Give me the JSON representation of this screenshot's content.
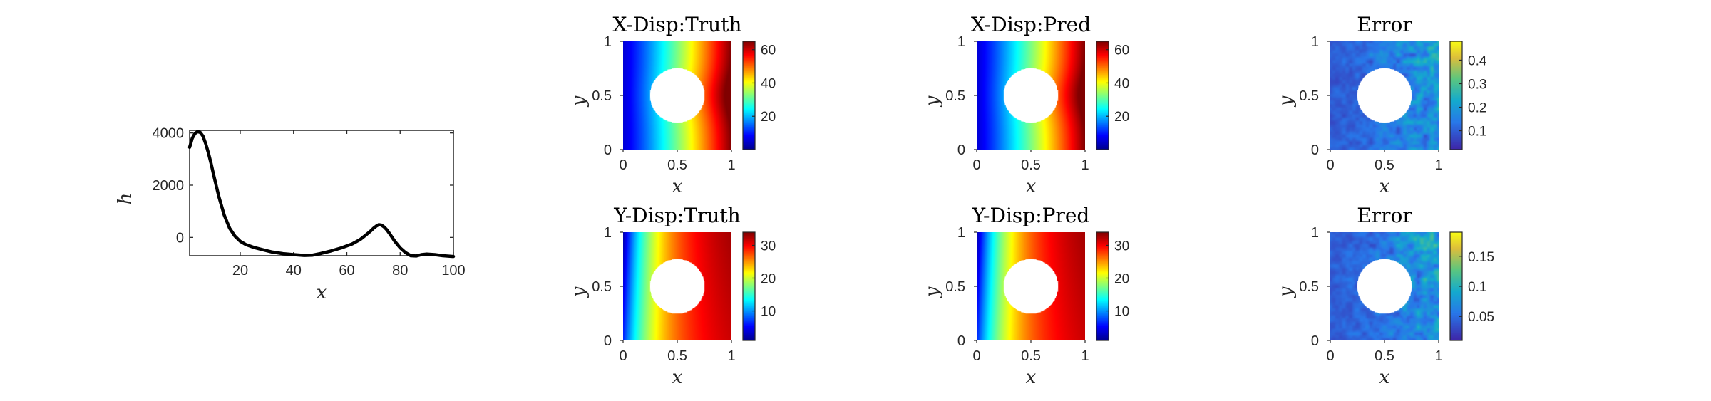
{
  "figure": {
    "background": "#ffffff",
    "axis_color": "#262626"
  },
  "chart_data": [
    {
      "type": "line",
      "title": "",
      "xlabel": "x",
      "ylabel": "h",
      "xlim": [
        1,
        100
      ],
      "ylim": [
        -700,
        4100
      ],
      "xticks": [
        20,
        40,
        60,
        80,
        100
      ],
      "yticks": [
        0,
        2000,
        4000
      ],
      "line_color": "#000000",
      "series": [
        {
          "x": [
            1,
            2,
            3,
            4,
            5,
            6,
            7,
            8,
            9,
            10,
            12,
            14,
            16,
            18,
            20,
            22,
            25,
            28,
            32,
            36,
            40,
            44,
            47,
            50,
            54,
            58,
            62,
            65,
            67,
            69,
            70,
            71,
            72,
            73,
            74,
            75,
            76,
            77,
            78,
            80,
            82,
            84,
            86,
            88,
            90,
            93,
            96,
            100
          ],
          "y": [
            3450,
            3800,
            3980,
            4050,
            4020,
            3880,
            3600,
            3250,
            2850,
            2400,
            1550,
            850,
            350,
            50,
            -150,
            -270,
            -380,
            -460,
            -560,
            -620,
            -660,
            -690,
            -680,
            -620,
            -520,
            -400,
            -250,
            -80,
            80,
            250,
            350,
            430,
            490,
            470,
            400,
            290,
            150,
            0,
            -150,
            -400,
            -580,
            -700,
            -710,
            -660,
            -640,
            -660,
            -700,
            -730
          ]
        }
      ]
    },
    {
      "type": "heatmap",
      "title": "X-Disp:Truth",
      "xlabel": "x",
      "ylabel": "y",
      "xlim": [
        0,
        1
      ],
      "ylim": [
        0,
        1
      ],
      "xticks": [
        0,
        0.5,
        1
      ],
      "yticks": [
        0,
        0.5,
        1
      ],
      "colormap": "jet",
      "clim": [
        0,
        65
      ],
      "colorbar_ticks": [
        20,
        40,
        60
      ],
      "field": "x_displacement",
      "hole": {
        "cx": 0.5,
        "cy": 0.5,
        "r": 0.25
      }
    },
    {
      "type": "heatmap",
      "title": "X-Disp:Pred",
      "xlabel": "x",
      "ylabel": "y",
      "xlim": [
        0,
        1
      ],
      "ylim": [
        0,
        1
      ],
      "xticks": [
        0,
        0.5,
        1
      ],
      "yticks": [
        0,
        0.5,
        1
      ],
      "colormap": "jet",
      "clim": [
        0,
        65
      ],
      "colorbar_ticks": [
        20,
        40,
        60
      ],
      "field": "x_displacement",
      "hole": {
        "cx": 0.5,
        "cy": 0.5,
        "r": 0.25
      }
    },
    {
      "type": "heatmap",
      "title": "Error",
      "xlabel": "x",
      "ylabel": "y",
      "xlim": [
        0,
        1
      ],
      "ylim": [
        0,
        1
      ],
      "xticks": [
        0,
        0.5,
        1
      ],
      "yticks": [
        0,
        0.5,
        1
      ],
      "colormap": "parula",
      "clim": [
        0.02,
        0.48
      ],
      "colorbar_ticks": [
        0.1,
        0.2,
        0.3,
        0.4
      ],
      "field": "error",
      "hole": {
        "cx": 0.5,
        "cy": 0.5,
        "r": 0.25
      }
    },
    {
      "type": "heatmap",
      "title": "Y-Disp:Truth",
      "xlabel": "x",
      "ylabel": "y",
      "xlim": [
        0,
        1
      ],
      "ylim": [
        0,
        1
      ],
      "xticks": [
        0,
        0.5,
        1
      ],
      "yticks": [
        0,
        0.5,
        1
      ],
      "colormap": "jet",
      "clim": [
        1,
        34
      ],
      "colorbar_ticks": [
        10,
        20,
        30
      ],
      "field": "y_displacement",
      "hole": {
        "cx": 0.5,
        "cy": 0.5,
        "r": 0.25
      }
    },
    {
      "type": "heatmap",
      "title": "Y-Disp:Pred",
      "xlabel": "x",
      "ylabel": "y",
      "xlim": [
        0,
        1
      ],
      "ylim": [
        0,
        1
      ],
      "xticks": [
        0,
        0.5,
        1
      ],
      "yticks": [
        0,
        0.5,
        1
      ],
      "colormap": "jet",
      "clim": [
        1,
        34
      ],
      "colorbar_ticks": [
        10,
        20,
        30
      ],
      "field": "y_displacement",
      "hole": {
        "cx": 0.5,
        "cy": 0.5,
        "r": 0.25
      }
    },
    {
      "type": "heatmap",
      "title": "Error",
      "xlabel": "x",
      "ylabel": "y",
      "xlim": [
        0,
        1
      ],
      "ylim": [
        0,
        1
      ],
      "xticks": [
        0,
        0.5,
        1
      ],
      "yticks": [
        0,
        0.5,
        1
      ],
      "colormap": "parula",
      "clim": [
        0.01,
        0.19
      ],
      "colorbar_ticks": [
        0.05,
        0.1,
        0.15
      ],
      "field": "error",
      "hole": {
        "cx": 0.5,
        "cy": 0.5,
        "r": 0.25
      }
    }
  ]
}
